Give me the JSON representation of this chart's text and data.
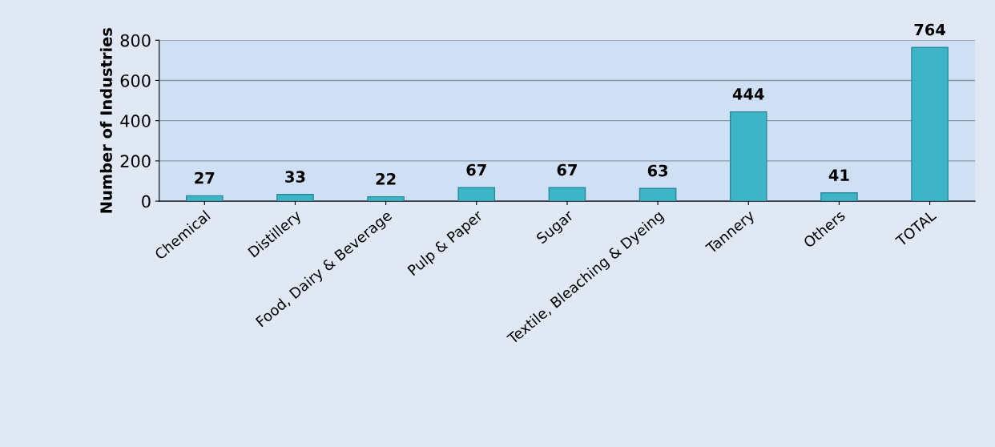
{
  "chart_data": {
    "type": "bar",
    "ylabel": "Number of Industries",
    "categories": [
      "Chemical",
      "Distillery",
      "Food, Dairy & Beverage",
      "Pulp & Paper",
      "Sugar",
      "Textile, Bleaching & Dyeing",
      "Tannery",
      "Others",
      "TOTAL"
    ],
    "values": [
      27,
      33,
      22,
      67,
      67,
      63,
      444,
      41,
      764
    ],
    "color": "#3db5c6",
    "ylim": [
      0,
      800
    ],
    "yticks": [
      0,
      200,
      400,
      600,
      800
    ],
    "grid": "y",
    "data_labels": true
  }
}
